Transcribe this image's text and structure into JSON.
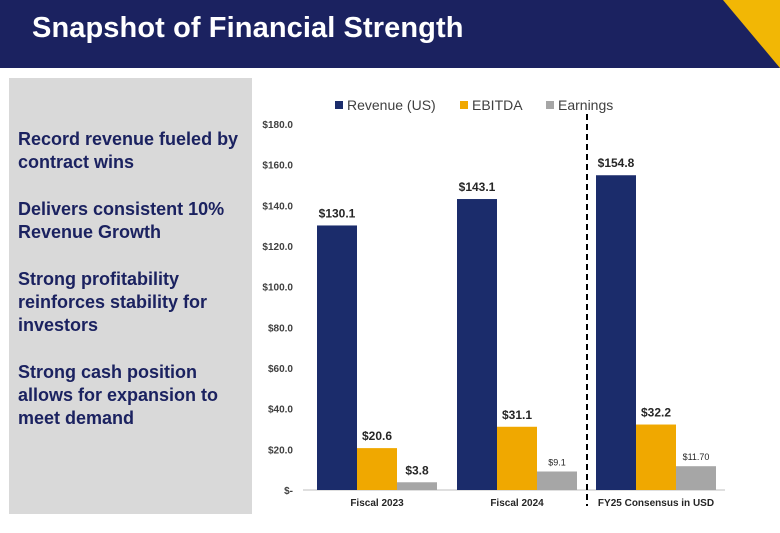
{
  "header": {
    "title": "Snapshot of Financial Strength",
    "background_color": "#1b2260",
    "accent_color": "#f2b705"
  },
  "sidebar": {
    "points": [
      "Record revenue fueled by contract wins",
      "Delivers consistent 10% Revenue Growth",
      "Strong profitability reinforces stability for investors",
      "Strong cash position allows for expansion to meet demand"
    ]
  },
  "chart_data": {
    "type": "bar",
    "categories": [
      "Fiscal 2023",
      "Fiscal 2024",
      "FY25 Consensus in USD"
    ],
    "series": [
      {
        "name": "Revenue (US)",
        "color": "#1b2c6b",
        "values": [
          130.1,
          143.1,
          154.8
        ],
        "labels": [
          "$130.1",
          "$143.1",
          "$154.8"
        ]
      },
      {
        "name": "EBITDA",
        "color": "#f0a800",
        "values": [
          20.6,
          31.1,
          32.2
        ],
        "labels": [
          "$20.6",
          "$31.1",
          "$32.2"
        ]
      },
      {
        "name": "Earnings",
        "color": "#a6a6a6",
        "values": [
          3.8,
          9.1,
          11.7
        ],
        "labels": [
          "$3.8",
          "$9.1",
          "$11.70"
        ]
      }
    ],
    "y_ticks": [
      0,
      20,
      40,
      60,
      80,
      100,
      120,
      140,
      160,
      180
    ],
    "y_tick_labels": [
      "$-",
      "$20.0",
      "$40.0",
      "$60.0",
      "$80.0",
      "$100.0",
      "$120.0",
      "$140.0",
      "$160.0",
      "$180.0"
    ],
    "ylim": [
      0,
      180
    ],
    "legend_position": "top",
    "gridlines": false,
    "divider": "dashed line between Fiscal 2024 and FY25 Consensus in USD"
  }
}
